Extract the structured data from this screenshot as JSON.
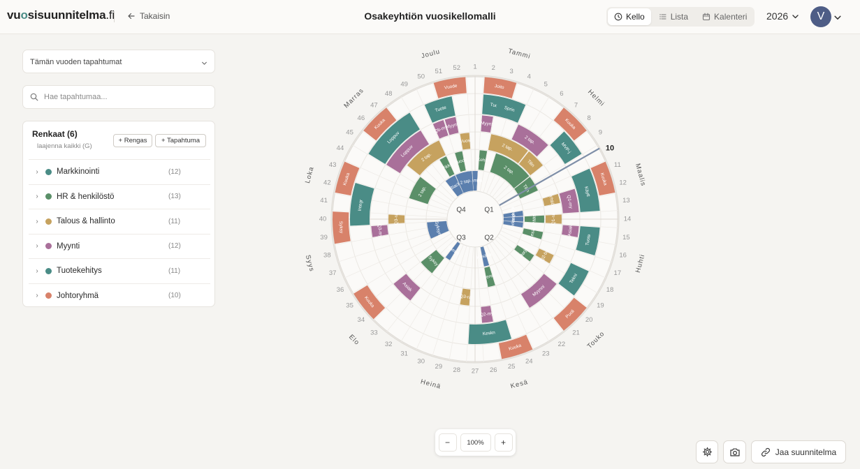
{
  "app": {
    "logo_prefix": "vu",
    "logo_accent": "o",
    "logo_rest": "sisuunnitelma",
    "logo_tld": ".fi",
    "back_label": "Takaisin"
  },
  "header": {
    "title": "Osakeyhtiön vuosikellomalli",
    "year": "2026",
    "avatar_initial": "V"
  },
  "view_tabs": [
    {
      "label": "Kello",
      "icon": "clock-icon",
      "active": true
    },
    {
      "label": "Lista",
      "icon": "list-icon",
      "active": false
    },
    {
      "label": "Kalenteri",
      "icon": "calendar-icon",
      "active": false
    }
  ],
  "sidebar": {
    "filter_value": "Tämän vuoden tapahtumat",
    "search_placeholder": "Hae tapahtumaa...",
    "rings_title": "Renkaat (6)",
    "expand_all": "laajenna kaikki (G)",
    "add_ring": "+ Rengas",
    "add_event": "+ Tapahtuma",
    "rings": [
      {
        "name": "Markkinointi",
        "count": "(12)",
        "color": "#4a8c86"
      },
      {
        "name": "HR & henkilöstö",
        "count": "(13)",
        "color": "#5a8f68"
      },
      {
        "name": "Talous & hallinto",
        "count": "(11)",
        "color": "#c6a25f"
      },
      {
        "name": "Myynti",
        "count": "(12)",
        "color": "#a9709a"
      },
      {
        "name": "Tuotekehitys",
        "count": "(11)",
        "color": "#4a8c86"
      },
      {
        "name": "Johtoryhmä",
        "count": "(10)",
        "color": "#d8826a"
      }
    ]
  },
  "wheel": {
    "current_week": "10",
    "months": [
      "Tammi",
      "Helmi",
      "Maalis",
      "Huhti",
      "Touko",
      "Kesä",
      "Heinä",
      "Elo",
      "Syys",
      "Loka",
      "Marras",
      "Joulu"
    ],
    "quarters": [
      "Q1",
      "Q2",
      "Q3",
      "Q4"
    ],
    "colors": {
      "markkinointi": "#4a8c86",
      "hr": "#5a8f68",
      "talous": "#c6a25f",
      "myynti": "#a9709a",
      "tuote": "#4a8c86",
      "johto": "#d8826a",
      "inner": "#5b7fae"
    },
    "events": [
      {
        "ring": 0,
        "w0": 51,
        "w1": 53,
        "label": "Vuode",
        "c": "johto"
      },
      {
        "ring": 0,
        "w0": 2,
        "w1": 4,
        "label": "Joito",
        "c": "johto"
      },
      {
        "ring": 0,
        "w0": 7,
        "w1": 9,
        "label": "Kuuka",
        "c": "johto"
      },
      {
        "ring": 0,
        "w0": 11,
        "w1": 13,
        "label": "Kuuka",
        "c": "johto"
      },
      {
        "ring": 0,
        "w0": 20,
        "w1": 22,
        "label": "Puoli",
        "c": "johto"
      },
      {
        "ring": 0,
        "w0": 24,
        "w1": 26,
        "label": "Kuuka",
        "c": "johto"
      },
      {
        "ring": 0,
        "w0": 34,
        "w1": 36,
        "label": "Kuuka",
        "c": "johto"
      },
      {
        "ring": 0,
        "w0": 39,
        "w1": 41,
        "label": "Syksy",
        "c": "johto"
      },
      {
        "ring": 0,
        "w0": 42,
        "w1": 44,
        "label": "Kuuka",
        "c": "johto"
      },
      {
        "ring": 0,
        "w0": 46,
        "w1": 48,
        "label": "Kuuka",
        "c": "johto"
      },
      {
        "ring": 1,
        "w0": 50,
        "w1": 52,
        "label": "Tuote",
        "c": "tuote"
      },
      {
        "ring": 1,
        "w0": 2,
        "w1": 4,
        "label": "Tuote",
        "c": "tuote"
      },
      {
        "ring": 1,
        "w0": 3,
        "w1": 5,
        "label": "Sprin",
        "c": "tuote"
      },
      {
        "ring": 1,
        "w0": 8,
        "w1": 10,
        "label": "MVP-j",
        "c": "tuote"
      },
      {
        "ring": 1,
        "w0": 11,
        "w1": 14,
        "label": "Käytt",
        "c": "tuote"
      },
      {
        "ring": 1,
        "w0": 15,
        "w1": 17,
        "label": "Tuote",
        "c": "tuote"
      },
      {
        "ring": 1,
        "w0": 18,
        "w1": 20,
        "label": "Tekni",
        "c": "tuote"
      },
      {
        "ring": 1,
        "w0": 25,
        "w1": 28,
        "label": "Keskn",
        "c": "tuote"
      },
      {
        "ring": 1,
        "w0": 40,
        "w1": 43,
        "label": "Integr",
        "c": "tuote"
      },
      {
        "ring": 1,
        "w0": 45,
        "w1": 49,
        "label": "Loppuv",
        "c": "tuote"
      },
      {
        "ring": 2,
        "w0": 50,
        "w1": 51,
        "label": "Qb-my",
        "c": "myynti"
      },
      {
        "ring": 2,
        "w0": 51,
        "w1": 52,
        "label": "Myynt",
        "c": "myynti"
      },
      {
        "ring": 2,
        "w0": 2,
        "w1": 3,
        "label": "Myynt",
        "c": "myynti"
      },
      {
        "ring": 2,
        "w0": 5,
        "w1": 8,
        "label": "2 tap.",
        "c": "myynti"
      },
      {
        "ring": 2,
        "w0": 12,
        "w1": 14,
        "label": "Q1-my",
        "c": "myynti"
      },
      {
        "ring": 2,
        "w0": 15,
        "w1": 16,
        "label": "Asiak",
        "c": "myynti"
      },
      {
        "ring": 2,
        "w0": 20,
        "w1": 23,
        "label": "Myynni",
        "c": "myynti"
      },
      {
        "ring": 2,
        "w0": 26,
        "w1": 27,
        "label": "Q2-my",
        "c": "myynti"
      },
      {
        "ring": 2,
        "w0": 33,
        "w1": 35,
        "label": "Asiak",
        "c": "myynti"
      },
      {
        "ring": 2,
        "w0": 39,
        "w1": 40,
        "label": "Q3-my",
        "c": "myynti"
      },
      {
        "ring": 2,
        "w0": 45,
        "w1": 49,
        "label": "Loppuv",
        "c": "myynti"
      },
      {
        "ring": 3,
        "w0": 52,
        "w1": 53,
        "label": "Vuosi",
        "c": "talous"
      },
      {
        "ring": 3,
        "w0": 3,
        "w1": 7,
        "label": "2 tap.",
        "c": "talous"
      },
      {
        "ring": 3,
        "w0": 7,
        "w1": 9,
        "label": "Tilin",
        "c": "talous"
      },
      {
        "ring": 3,
        "w0": 12,
        "w1": 13,
        "label": "Yhtiö",
        "c": "talous"
      },
      {
        "ring": 3,
        "w0": 14,
        "w1": 15,
        "label": "Q1-ra",
        "c": "talous"
      },
      {
        "ring": 3,
        "w0": 18,
        "w1": 19,
        "label": "Q2-bu",
        "c": "talous"
      },
      {
        "ring": 3,
        "w0": 28,
        "w1": 29,
        "label": "Q3-ra",
        "c": "talous"
      },
      {
        "ring": 3,
        "w0": 40,
        "w1": 41,
        "label": "Q3-ra",
        "c": "talous"
      },
      {
        "ring": 3,
        "w0": 46,
        "w1": 50,
        "label": "2 tap.",
        "c": "talous"
      },
      {
        "ring": 4,
        "w0": 51,
        "w1": 52,
        "label": "Vuode",
        "c": "hr"
      },
      {
        "ring": 4,
        "w0": 2,
        "w1": 3,
        "label": "Kehit",
        "c": "hr"
      },
      {
        "ring": 4,
        "w0": 4,
        "w1": 9,
        "label": "2 tap.",
        "c": "hr"
      },
      {
        "ring": 4,
        "w0": 9,
        "w1": 11,
        "label": "Tilin",
        "c": "hr"
      },
      {
        "ring": 4,
        "w0": 14,
        "w1": 15,
        "label": "Pääsi",
        "c": "hr"
      },
      {
        "ring": 4,
        "w0": 16,
        "w1": 17,
        "label": "Kesät",
        "c": "hr"
      },
      {
        "ring": 4,
        "w0": 19,
        "w1": 20,
        "label": "Harjo",
        "c": "hr"
      },
      {
        "ring": 4,
        "w0": 25,
        "w1": 26,
        "label": "Perek",
        "c": "hr"
      },
      {
        "ring": 4,
        "w0": 33,
        "w1": 35,
        "label": "Syksy",
        "c": "hr"
      },
      {
        "ring": 4,
        "w0": 43,
        "w1": 46,
        "label": "2 tap.",
        "c": "hr"
      },
      {
        "ring": 4,
        "w0": 49,
        "w1": 50,
        "label": "Pikku",
        "c": "hr"
      },
      {
        "ring": 5,
        "w0": 52,
        "w1": 53,
        "label": "Vuosi",
        "c": "inner"
      },
      {
        "ring": 5,
        "w0": 1,
        "w1": 2,
        "label": "Keväs",
        "c": "inner"
      },
      {
        "ring": 5,
        "w0": 1,
        "w1": 2,
        "label": "Kampa",
        "c": "inner"
      },
      {
        "ring": 5,
        "w0": 13,
        "w1": 14,
        "label": "Kevään",
        "c": "inner"
      },
      {
        "ring": 5,
        "w0": 14,
        "w1": 15,
        "label": "Markk",
        "c": "inner"
      },
      {
        "ring": 5,
        "w0": 15,
        "w1": 16,
        "label": "Verkin",
        "c": "inner"
      },
      {
        "ring": 5,
        "w0": 25,
        "w1": 26,
        "label": "Kesäka",
        "c": "inner"
      },
      {
        "ring": 5,
        "w0": 32,
        "w1": 33,
        "label": "Somek",
        "c": "inner"
      },
      {
        "ring": 5,
        "w0": 37,
        "w1": 40,
        "label": "Syksyn",
        "c": "inner"
      },
      {
        "ring": 5,
        "w0": 48,
        "w1": 50,
        "label": "Black",
        "c": "inner"
      },
      {
        "ring": 5,
        "w0": 50,
        "w1": 53,
        "label": "2 tap.",
        "c": "inner"
      }
    ]
  },
  "zoom": {
    "minus": "−",
    "level": "100%",
    "plus": "+"
  },
  "footer": {
    "share_label": "Jaa suunnitelma"
  }
}
